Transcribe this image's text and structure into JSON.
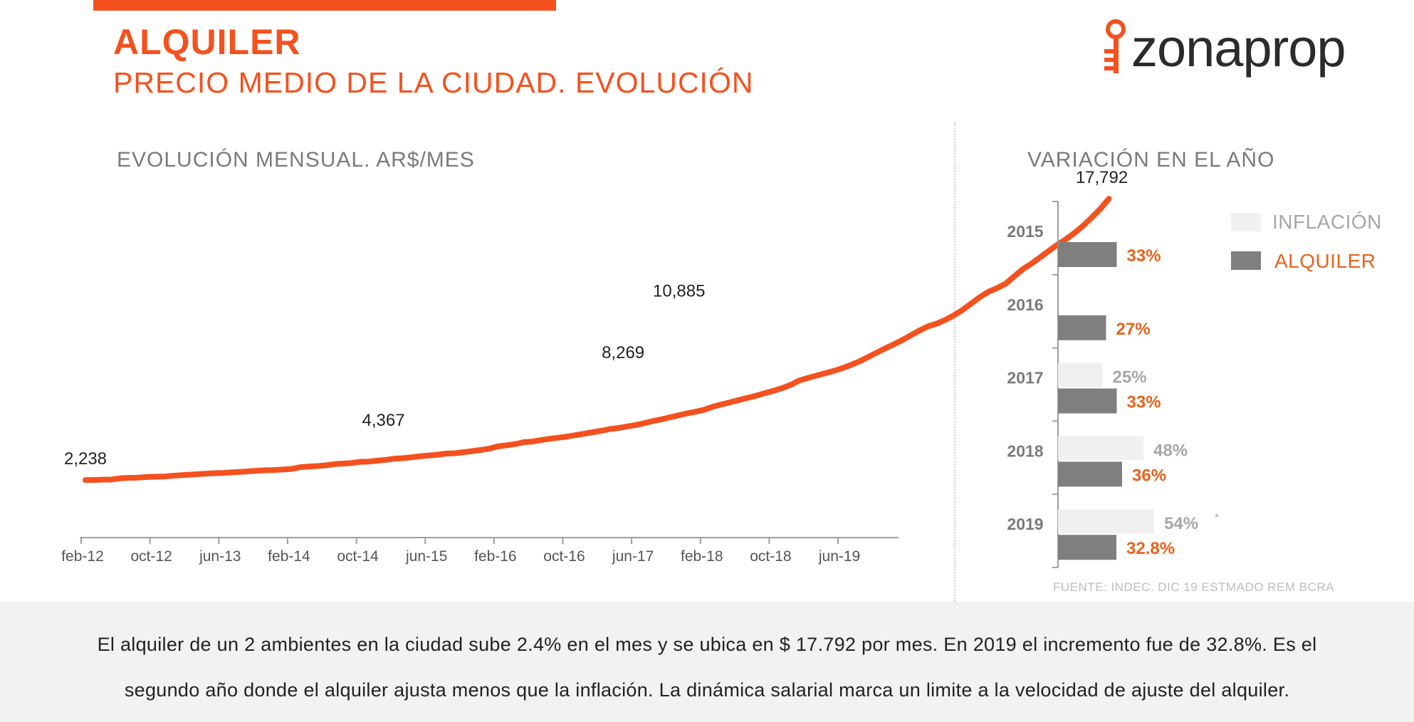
{
  "header": {
    "title": "ALQUILER",
    "subtitle": "PRECIO MEDIO DE LA CIUDAD. EVOLUCIÓN",
    "accent_color": "#f4511e"
  },
  "logo": {
    "text": "zonaprop",
    "icon": "key-icon"
  },
  "line_section": {
    "title": "EVOLUCIÓN MENSUAL. AR$/MES"
  },
  "bar_section": {
    "title": "VARIACIÓN EN EL AÑO",
    "source": "FUENTE: INDEC. DIC 19 ESTMADO REM BCRA"
  },
  "footer": {
    "line1": "El alquiler de un 2 ambientes en la ciudad sube 2.4% en el mes y se ubica en $ 17.792 por mes. En 2019 el incremento fue de 32.8%. Es el",
    "line2": "segundo año donde el alquiler ajusta menos que la inflación. La dinámica salarial marca un limite a la velocidad de ajuste del alquiler."
  },
  "chart_data": [
    {
      "type": "line",
      "title": "EVOLUCIÓN MENSUAL. AR$/MES",
      "x_tick_labels": [
        "feb-12",
        "oct-12",
        "jun-13",
        "feb-14",
        "oct-14",
        "jun-15",
        "feb-16",
        "oct-16",
        "jun-17",
        "feb-18",
        "oct-18",
        "jun-19"
      ],
      "x_start": "feb-12",
      "x_end": "dic-19",
      "series": [
        {
          "color": "#f4511e",
          "values": [
            2238,
            2240,
            2260,
            2265,
            2330,
            2360,
            2365,
            2400,
            2420,
            2430,
            2470,
            2500,
            2530,
            2560,
            2590,
            2620,
            2630,
            2660,
            2690,
            2720,
            2750,
            2780,
            2790,
            2820,
            2850,
            2950,
            2980,
            3010,
            3050,
            3120,
            3150,
            3180,
            3250,
            3260,
            3310,
            3360,
            3420,
            3450,
            3500,
            3560,
            3600,
            3640,
            3700,
            3720,
            3780,
            3840,
            3900,
            3980,
            4100,
            4160,
            4230,
            4330,
            4367,
            4450,
            4520,
            4580,
            4640,
            4720,
            4800,
            4880,
            4960,
            5060,
            5120,
            5200,
            5280,
            5380,
            5500,
            5600,
            5710,
            5820,
            5930,
            6020,
            6130,
            6300,
            6420,
            6540,
            6660,
            6780,
            6900,
            7040,
            7170,
            7320,
            7500,
            7740,
            7880,
            8010,
            8140,
            8269,
            8420,
            8600,
            8800,
            9040,
            9280,
            9520,
            9740,
            9980,
            10250,
            10510,
            10740,
            10885,
            11100,
            11350,
            11650,
            12000,
            12350,
            12650,
            12850,
            13100,
            13500,
            13900,
            14200,
            14550,
            14900,
            15250,
            15550,
            15900,
            16300,
            16750,
            17230,
            17792
          ]
        }
      ],
      "data_labels": [
        {
          "x": "feb-12",
          "y": 2238,
          "label": "2,238"
        },
        {
          "x": "oct-14",
          "y": 4367,
          "label": "4,367"
        },
        {
          "x": "jun-17",
          "y": 8269,
          "label": "8,269"
        },
        {
          "x": "feb-18",
          "y": 10885,
          "label": "10,885"
        },
        {
          "x": "dic-19",
          "y": 17792,
          "label": "17,792"
        }
      ],
      "ylim": [
        0,
        20000
      ],
      "grid": false
    },
    {
      "type": "bar",
      "orientation": "horizontal",
      "title": "VARIACIÓN EN EL AÑO",
      "categories": [
        "2015",
        "2016",
        "2017",
        "2018",
        "2019"
      ],
      "series": [
        {
          "name": "INFLACIÓN",
          "color": "#f0f0f0",
          "label_color": "#a6a6a6",
          "values": [
            null,
            null,
            25,
            48,
            54
          ],
          "labels": [
            "",
            "",
            "25%",
            "48%",
            "54%"
          ]
        },
        {
          "name": "ALQUILER",
          "color": "#7f7f7f",
          "label_color": "#e8621c",
          "values": [
            33,
            27,
            33,
            36,
            32.8
          ],
          "labels": [
            "33%",
            "27%",
            "33%",
            "36%",
            "32.8%"
          ]
        }
      ],
      "annotations": [
        {
          "category": "2019",
          "series": "INFLACIÓN",
          "text": "*"
        }
      ],
      "legend_position": "top-right",
      "xlim": [
        0,
        100
      ]
    }
  ]
}
